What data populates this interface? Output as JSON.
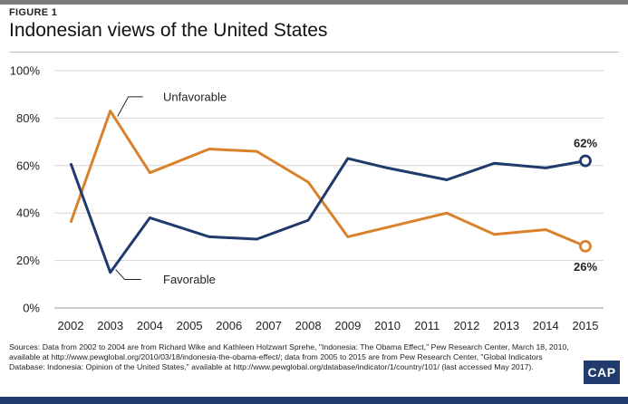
{
  "header": {
    "figure_label": "FIGURE 1",
    "title": "Indonesian views of the United States"
  },
  "chart_data": {
    "type": "line",
    "title": "Indonesian views of the United States",
    "x": [
      2002,
      2003,
      2004,
      2005,
      2006,
      2007,
      2008,
      2009,
      2010,
      2011,
      2012,
      2013,
      2014,
      2015
    ],
    "x_tick_labels": [
      "2002",
      "2003",
      "2004",
      "2005",
      "2006",
      "2007",
      "2008",
      "2009",
      "2010",
      "2011",
      "2012",
      "2013",
      "2014",
      "2015"
    ],
    "y_tick_labels": [
      "0%",
      "20%",
      "40%",
      "60%",
      "80%",
      "100%"
    ],
    "ylim": [
      0,
      100
    ],
    "grid": true,
    "series": [
      {
        "name": "Unfavorable",
        "color": "#d9822b",
        "points": [
          [
            2002,
            36
          ],
          [
            2003,
            83
          ],
          [
            2004,
            57
          ],
          [
            2005.5,
            67
          ],
          [
            2006.7,
            66
          ],
          [
            2008,
            53
          ],
          [
            2009,
            30
          ],
          [
            2010,
            34
          ],
          [
            2011.5,
            40
          ],
          [
            2012.7,
            31
          ],
          [
            2014,
            33
          ],
          [
            2015,
            26
          ]
        ],
        "end_label": "26%"
      },
      {
        "name": "Favorable",
        "color": "#1f3a6b",
        "points": [
          [
            2002,
            61
          ],
          [
            2003,
            15
          ],
          [
            2004,
            38
          ],
          [
            2005.5,
            30
          ],
          [
            2006.7,
            29
          ],
          [
            2008,
            37
          ],
          [
            2009,
            63
          ],
          [
            2010,
            59
          ],
          [
            2011.5,
            54
          ],
          [
            2012.7,
            61
          ],
          [
            2014,
            59
          ],
          [
            2015,
            62
          ]
        ],
        "end_label": "62%"
      }
    ]
  },
  "footer": {
    "sources": "Sources: Data from 2002 to 2004 are from Richard Wike and Kathleen Holzwart Sprehe, \"Indonesia: The Obama Effect,\" Pew Research Center, March 18, 2010, available at http://www.pewglobal.org/2010/03/18/indonesia-the-obama-effect/; data from 2005 to 2015 are from Pew Research Center, \"Global Indicators Database: Indonesia: Opinion of the United States,\" available at http://www.pewglobal.org/database/indicator/1/country/101/ (last accessed May 2017).",
    "logo_text": "CAP"
  }
}
